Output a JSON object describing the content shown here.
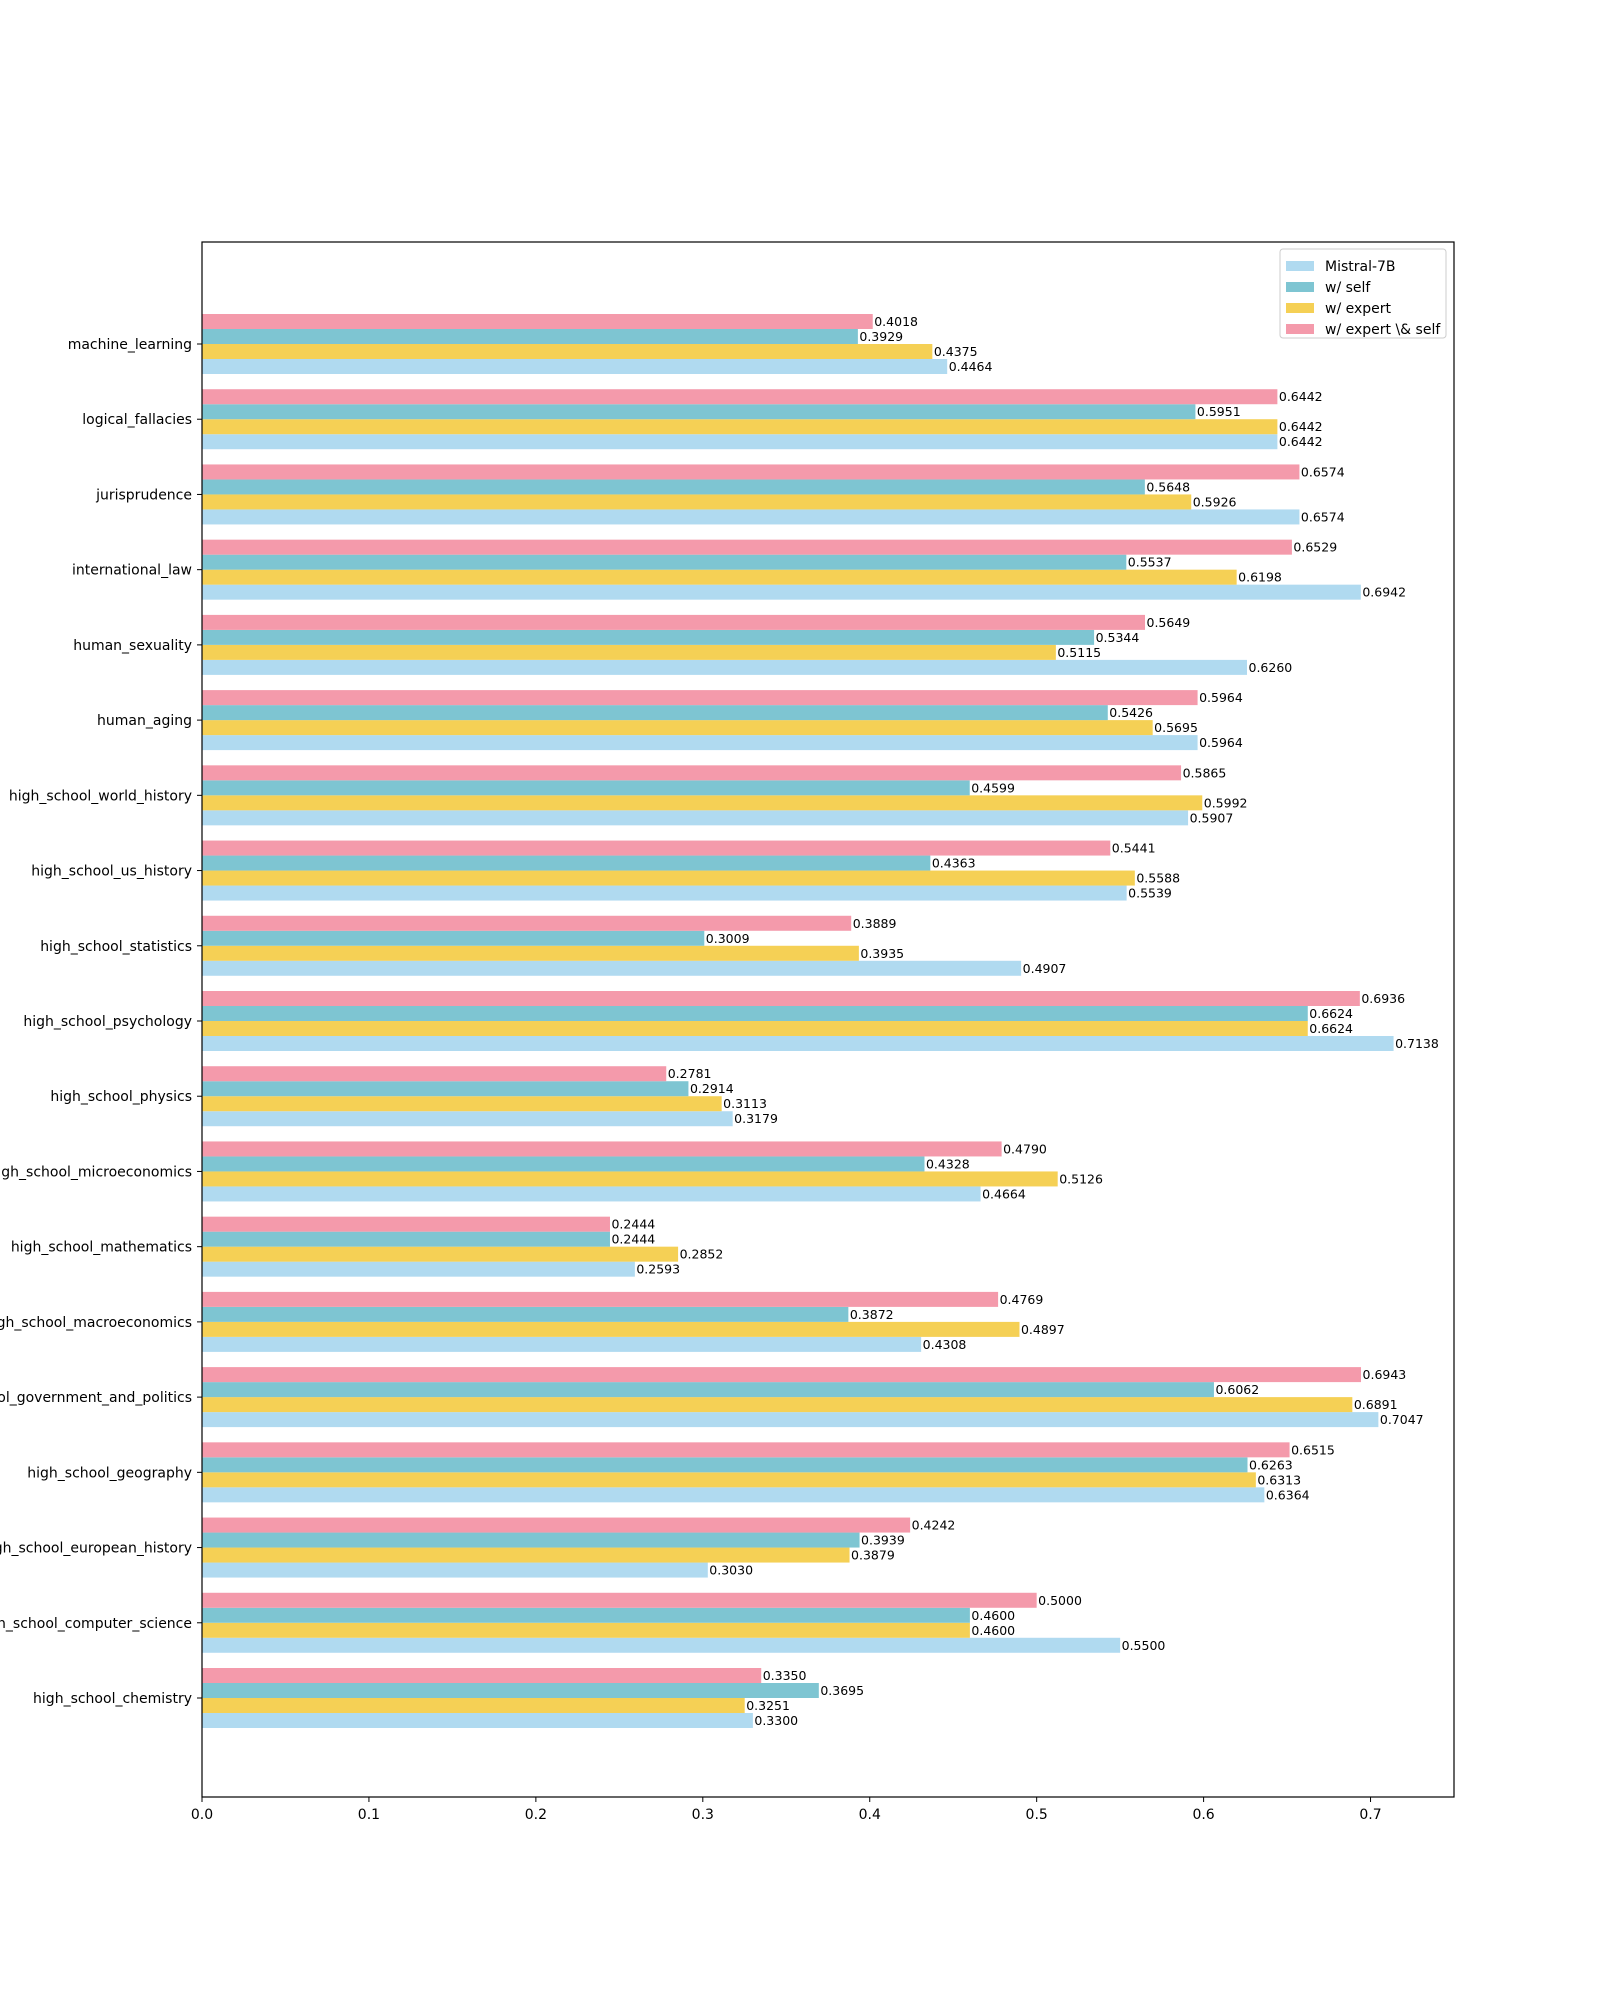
{
  "chart_data": {
    "type": "bar",
    "orientation": "horizontal",
    "title": "",
    "xlabel": "",
    "ylabel": "",
    "xlim": [
      0,
      0.75
    ],
    "xticks": [
      "0.0",
      "0.1",
      "0.2",
      "0.3",
      "0.4",
      "0.5",
      "0.6",
      "0.7"
    ],
    "grid": false,
    "legend_position": "top-right",
    "categories": [
      "machine_learning",
      "logical_fallacies",
      "jurisprudence",
      "international_law",
      "human_sexuality",
      "human_aging",
      "high_school_world_history",
      "high_school_us_history",
      "high_school_statistics",
      "high_school_psychology",
      "high_school_physics",
      "high_school_microeconomics",
      "high_school_mathematics",
      "high_school_macroeconomics",
      "high_school_government_and_politics",
      "high_school_geography",
      "high_school_european_history",
      "high_school_computer_science",
      "high_school_chemistry"
    ],
    "series": [
      {
        "name": "Mistral-7B",
        "color": "#b0daf0",
        "values": [
          0.4464,
          0.6442,
          0.6574,
          0.6942,
          0.626,
          0.5964,
          0.5907,
          0.5539,
          0.4907,
          0.7138,
          0.3179,
          0.4664,
          0.2593,
          0.4308,
          0.7047,
          0.6364,
          0.303,
          0.55,
          0.33
        ],
        "labels": [
          "0.4464",
          "0.6442",
          "0.6574",
          "0.6942",
          "0.6260",
          "0.5964",
          "0.5907",
          "0.5539",
          "0.4907",
          "0.7138",
          "0.3179",
          "0.4664",
          "0.2593",
          "0.4308",
          "0.7047",
          "0.6364",
          "0.3030",
          "0.5500",
          "0.3300"
        ]
      },
      {
        "name": "w/ expert",
        "color": "#f5d055",
        "values": [
          0.4375,
          0.6442,
          0.5926,
          0.6198,
          0.5115,
          0.5695,
          0.5992,
          0.5588,
          0.3935,
          0.6624,
          0.3113,
          0.5126,
          0.2852,
          0.4897,
          0.6891,
          0.6313,
          0.3879,
          0.46,
          0.3251
        ],
        "labels": [
          "0.4375",
          "0.6442",
          "0.5926",
          "0.6198",
          "0.5115",
          "0.5695",
          "0.5992",
          "0.5588",
          "0.3935",
          "0.6624",
          "0.3113",
          "0.5126",
          "0.2852",
          "0.4897",
          "0.6891",
          "0.6313",
          "0.3879",
          "0.4600",
          "0.3251"
        ]
      },
      {
        "name": "w/ self",
        "color": "#7ec5d2",
        "values": [
          0.3929,
          0.5951,
          0.5648,
          0.5537,
          0.5344,
          0.5426,
          0.4599,
          0.4363,
          0.3009,
          0.6624,
          0.2914,
          0.4328,
          0.2444,
          0.3872,
          0.6062,
          0.6263,
          0.3939,
          0.46,
          0.3695
        ],
        "labels": [
          "0.3929",
          "0.5951",
          "0.5648",
          "0.5537",
          "0.5344",
          "0.5426",
          "0.4599",
          "0.4363",
          "0.3009",
          "0.6624",
          "0.2914",
          "0.4328",
          "0.2444",
          "0.3872",
          "0.6062",
          "0.6263",
          "0.3939",
          "0.4600",
          "0.3695"
        ]
      },
      {
        "name": "w/ expert \\& self",
        "color": "#f49aab",
        "values": [
          0.4018,
          0.6442,
          0.6574,
          0.6529,
          0.5649,
          0.5964,
          0.5865,
          0.5441,
          0.3889,
          0.6936,
          0.2781,
          0.479,
          0.2444,
          0.4769,
          0.6943,
          0.6515,
          0.4242,
          0.5,
          0.335
        ],
        "labels": [
          "0.4018",
          "0.6442",
          "0.6574",
          "0.6529",
          "0.5649",
          "0.5964",
          "0.5865",
          "0.5441",
          "0.3889",
          "0.6936",
          "0.2781",
          "0.4790",
          "0.2444",
          "0.4769",
          "0.6943",
          "0.6515",
          "0.4242",
          "0.5000",
          "0.3350"
        ]
      }
    ],
    "legend": [
      {
        "name": "Mistral-7B",
        "color": "#b0daf0"
      },
      {
        "name": "w/ self",
        "color": "#7ec5d2"
      },
      {
        "name": "w/ expert",
        "color": "#f5d055"
      },
      {
        "name": "w/ expert \\& self",
        "color": "#f49aab"
      }
    ]
  }
}
